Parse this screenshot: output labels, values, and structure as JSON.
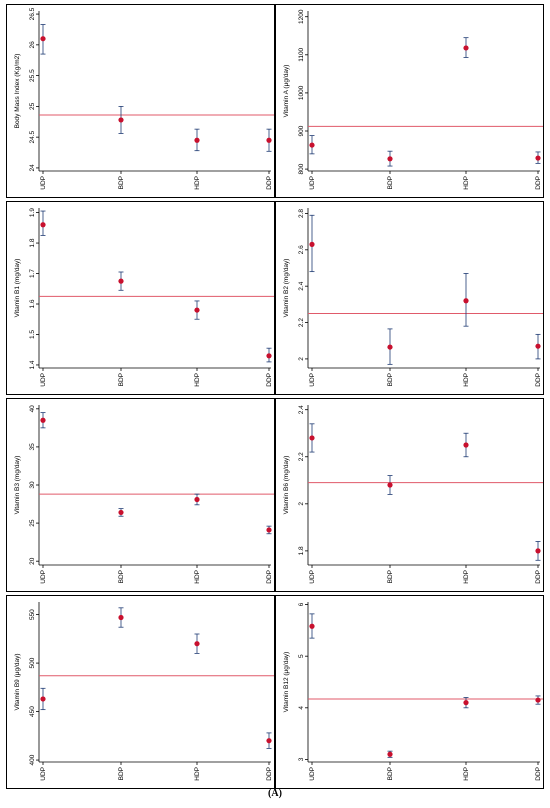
{
  "caption": "(A)",
  "style": {
    "ref_color": "#e05a6a",
    "point_color": "#c8102e",
    "err_color": "#1f3b73",
    "frame_color": "#000000"
  },
  "chart_data": [
    {
      "type": "scatter",
      "ylabel": "Body Mass Index (Kg/m2)",
      "categories": [
        "UDP",
        "BDP",
        "HDP",
        "DDP"
      ],
      "yticks": [
        24,
        24.5,
        25,
        25.5,
        26,
        26.5
      ],
      "ylim": [
        23.95,
        26.55
      ],
      "values": [
        26.1,
        24.78,
        24.45,
        24.45
      ],
      "lower": [
        25.85,
        24.56,
        24.28,
        24.27
      ],
      "upper": [
        26.33,
        25.0,
        24.63,
        24.63
      ],
      "reference": 24.86
    },
    {
      "type": "scatter",
      "ylabel": "Vitamin A (μg/day)",
      "categories": [
        "UDP",
        "BDP",
        "HDP",
        "DDP"
      ],
      "yticks": [
        800,
        900,
        1000,
        1100,
        1200
      ],
      "ylim": [
        795,
        1215
      ],
      "values": [
        863,
        827,
        1118,
        829
      ],
      "lower": [
        840,
        808,
        1093,
        815
      ],
      "upper": [
        888,
        847,
        1145,
        845
      ],
      "reference": 912
    },
    {
      "type": "scatter",
      "ylabel": "Vitamin B1 (mg/day)",
      "categories": [
        "UDP",
        "BDP",
        "HDP",
        "DDP"
      ],
      "yticks": [
        1.4,
        1.5,
        1.6,
        1.7,
        1.8,
        1.9
      ],
      "ylim": [
        1.39,
        1.915
      ],
      "values": [
        1.86,
        1.675,
        1.58,
        1.43
      ],
      "lower": [
        1.825,
        1.645,
        1.55,
        1.41
      ],
      "upper": [
        1.905,
        1.705,
        1.61,
        1.455
      ],
      "reference": 1.625
    },
    {
      "type": "scatter",
      "ylabel": "Vitamin B2 (mg/day)",
      "categories": [
        "UDP",
        "BDP",
        "HDP",
        "DDP"
      ],
      "yticks": [
        2,
        2.2,
        2.4,
        2.6,
        2.8
      ],
      "ylim": [
        1.95,
        2.83
      ],
      "values": [
        2.63,
        2.065,
        2.32,
        2.07
      ],
      "lower": [
        2.48,
        1.97,
        2.18,
        2.0
      ],
      "upper": [
        2.79,
        2.165,
        2.47,
        2.135
      ],
      "reference": 2.25
    },
    {
      "type": "scatter",
      "ylabel": "Vitamin B3 (mg/day)",
      "categories": [
        "UDP",
        "BDP",
        "HDP",
        "DDP"
      ],
      "yticks": [
        20,
        25,
        30,
        35,
        40
      ],
      "ylim": [
        19.5,
        40.5
      ],
      "values": [
        38.5,
        26.4,
        28.1,
        24.1
      ],
      "lower": [
        37.5,
        25.9,
        27.4,
        23.6
      ],
      "upper": [
        39.5,
        26.9,
        28.8,
        24.6
      ],
      "reference": 28.8
    },
    {
      "type": "scatter",
      "ylabel": "Vitamin B6 (mg/day)",
      "categories": [
        "UDP",
        "BDP",
        "HDP",
        "DDP"
      ],
      "yticks": [
        1.8,
        2,
        2.2,
        2.4
      ],
      "ylim": [
        1.74,
        2.42
      ],
      "values": [
        2.28,
        2.08,
        2.25,
        1.8
      ],
      "lower": [
        2.22,
        2.04,
        2.2,
        1.76
      ],
      "upper": [
        2.34,
        2.12,
        2.3,
        1.84
      ],
      "reference": 2.09
    },
    {
      "type": "scatter",
      "ylabel": "Vitamin B9 (μg/day)",
      "categories": [
        "UDP",
        "BDP",
        "HDP",
        "DDP"
      ],
      "yticks": [
        400,
        450,
        500,
        550
      ],
      "ylim": [
        398,
        563
      ],
      "values": [
        463,
        547,
        520,
        420
      ],
      "lower": [
        452,
        537,
        510,
        412
      ],
      "upper": [
        474,
        557,
        530,
        428
      ],
      "reference": 487
    },
    {
      "type": "scatter",
      "ylabel": "Vitamin B12 (μg/day)",
      "categories": [
        "UDP",
        "BDP",
        "HDP",
        "DDP"
      ],
      "yticks": [
        3,
        4,
        5,
        6
      ],
      "ylim": [
        2.95,
        6.05
      ],
      "values": [
        5.58,
        3.1,
        4.1,
        4.15
      ],
      "lower": [
        5.35,
        3.04,
        4.0,
        4.07
      ],
      "upper": [
        5.82,
        3.16,
        4.2,
        4.23
      ],
      "reference": 4.17
    }
  ]
}
